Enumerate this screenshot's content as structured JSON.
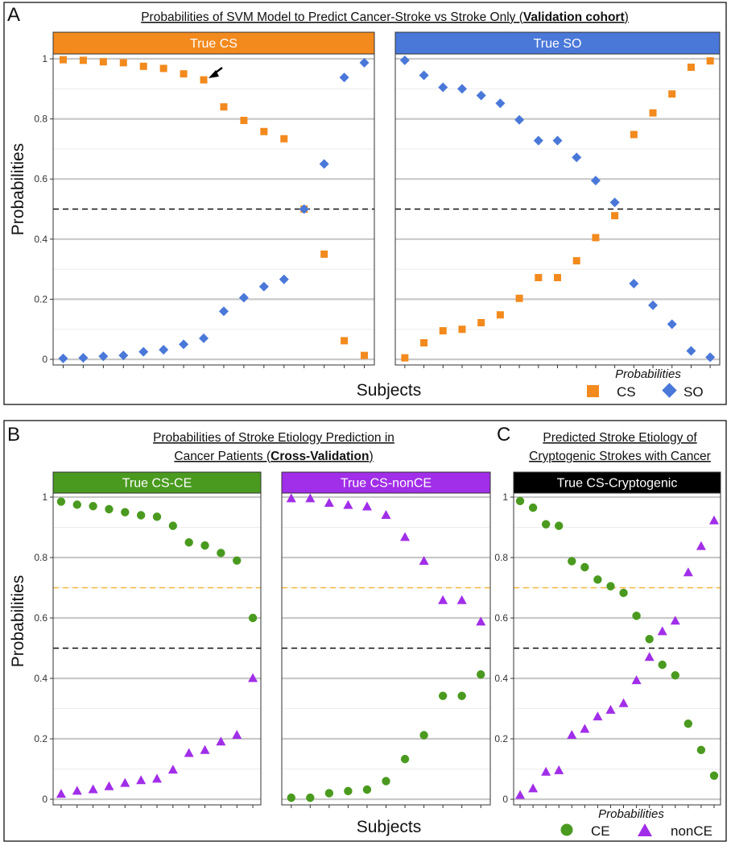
{
  "panels": {
    "A": {
      "letter": "A",
      "title_pre": "Probabilities of SVM Model to Predict Cancer-Stroke vs Stroke Only (",
      "title_bold": "Validation cohort",
      "title_post": ")"
    },
    "B": {
      "letter": "B",
      "title_line1": "Probabilities of Stroke Etiology Prediction in",
      "title_line2_pre": "Cancer Patients (",
      "title_line2_bold": "Cross-Validation",
      "title_line2_post": ")"
    },
    "C": {
      "letter": "C",
      "title_line1": "Predicted Stroke Etiology of",
      "title_line2": "Cryptogenic Strokes with Cancer"
    }
  },
  "axis": {
    "ylabel": "Probabilities",
    "xlabel": "Subjects",
    "yticks": [
      "0",
      "0.2",
      "0.4",
      "0.6",
      "0.8",
      "1"
    ]
  },
  "legend_A": {
    "title": "Probabilities",
    "items": [
      "CS",
      "SO"
    ]
  },
  "legend_BC": {
    "title": "Probabilities",
    "items": [
      "CE",
      "nonCE"
    ]
  },
  "colors": {
    "orange": "#f28a1e",
    "blue": "#4a78d9",
    "green": "#4a9a1f",
    "purple": "#a12ee8",
    "black": "#000000",
    "thresh_orange": "#f5b73b"
  },
  "chart_data": [
    {
      "type": "scatter",
      "panel": "A",
      "strip": "True CS",
      "strip_color": "#f28a1e",
      "xlabel": "Subjects",
      "ylabel": "Probabilities",
      "ylim": [
        0,
        1
      ],
      "thresholds": [
        0.5
      ],
      "annotation": "arrow pointing to subject 8",
      "series": [
        {
          "name": "CS",
          "shape": "square",
          "color": "#f28a1e",
          "values": [
            0.997,
            0.995,
            0.99,
            0.987,
            0.975,
            0.968,
            0.95,
            0.93,
            0.84,
            0.795,
            0.758,
            0.734,
            0.5,
            0.35,
            0.062,
            0.013
          ]
        },
        {
          "name": "SO",
          "shape": "diamond",
          "color": "#4a78d9",
          "values": [
            0.003,
            0.005,
            0.01,
            0.013,
            0.025,
            0.032,
            0.05,
            0.07,
            0.16,
            0.205,
            0.242,
            0.266,
            0.5,
            0.65,
            0.938,
            0.987
          ]
        }
      ]
    },
    {
      "type": "scatter",
      "panel": "A",
      "strip": "True SO",
      "strip_color": "#4a78d9",
      "xlabel": "Subjects",
      "ylabel": "Probabilities",
      "ylim": [
        0,
        1
      ],
      "thresholds": [
        0.5
      ],
      "series": [
        {
          "name": "CS",
          "shape": "square",
          "color": "#f28a1e",
          "values": [
            0.005,
            0.055,
            0.095,
            0.1,
            0.122,
            0.148,
            0.203,
            0.272,
            0.272,
            0.328,
            0.405,
            0.478,
            0.748,
            0.82,
            0.883,
            0.972,
            0.993
          ]
        },
        {
          "name": "SO",
          "shape": "diamond",
          "color": "#4a78d9",
          "values": [
            0.995,
            0.945,
            0.905,
            0.9,
            0.878,
            0.852,
            0.797,
            0.728,
            0.728,
            0.672,
            0.595,
            0.522,
            0.252,
            0.18,
            0.117,
            0.028,
            0.007
          ]
        }
      ]
    },
    {
      "type": "scatter",
      "panel": "B",
      "strip": "True CS-CE",
      "strip_color": "#4a9a1f",
      "xlabel": "Subjects",
      "ylabel": "Probabilities",
      "ylim": [
        0,
        1
      ],
      "thresholds": [
        0.5,
        0.7
      ],
      "series": [
        {
          "name": "CE",
          "shape": "circle",
          "color": "#4a9a1f",
          "values": [
            0.985,
            0.975,
            0.97,
            0.96,
            0.95,
            0.94,
            0.935,
            0.905,
            0.85,
            0.84,
            0.815,
            0.79,
            0.6
          ]
        },
        {
          "name": "nonCE",
          "shape": "triangle",
          "color": "#a12ee8",
          "values": [
            0.017,
            0.027,
            0.032,
            0.042,
            0.053,
            0.062,
            0.067,
            0.097,
            0.152,
            0.162,
            0.19,
            0.212,
            0.4
          ]
        }
      ]
    },
    {
      "type": "scatter",
      "panel": "B",
      "strip": "True CS-nonCE",
      "strip_color": "#a12ee8",
      "xlabel": "Subjects",
      "ylabel": "Probabilities",
      "ylim": [
        0,
        1
      ],
      "thresholds": [
        0.5,
        0.7
      ],
      "series": [
        {
          "name": "CE",
          "shape": "circle",
          "color": "#4a9a1f",
          "values": [
            0.005,
            0.005,
            0.02,
            0.027,
            0.032,
            0.06,
            0.133,
            0.212,
            0.342,
            0.342,
            0.413
          ]
        },
        {
          "name": "nonCE",
          "shape": "triangle",
          "color": "#a12ee8",
          "values": [
            0.995,
            0.995,
            0.98,
            0.973,
            0.968,
            0.94,
            0.867,
            0.788,
            0.658,
            0.658,
            0.587
          ]
        }
      ]
    },
    {
      "type": "scatter",
      "panel": "C",
      "strip": "True CS-Cryptogenic",
      "strip_color": "#000000",
      "xlabel": "Subjects",
      "ylabel": "Probabilities",
      "ylim": [
        0,
        1
      ],
      "thresholds": [
        0.5,
        0.7
      ],
      "series": [
        {
          "name": "CE",
          "shape": "circle",
          "color": "#4a9a1f",
          "values": [
            0.987,
            0.965,
            0.91,
            0.905,
            0.788,
            0.768,
            0.727,
            0.705,
            0.683,
            0.607,
            0.53,
            0.445,
            0.41,
            0.25,
            0.163,
            0.078
          ]
        },
        {
          "name": "nonCE",
          "shape": "triangle",
          "color": "#a12ee8",
          "values": [
            0.013,
            0.035,
            0.09,
            0.095,
            0.212,
            0.232,
            0.273,
            0.295,
            0.317,
            0.393,
            0.47,
            0.555,
            0.59,
            0.75,
            0.837,
            0.922
          ]
        }
      ]
    }
  ]
}
